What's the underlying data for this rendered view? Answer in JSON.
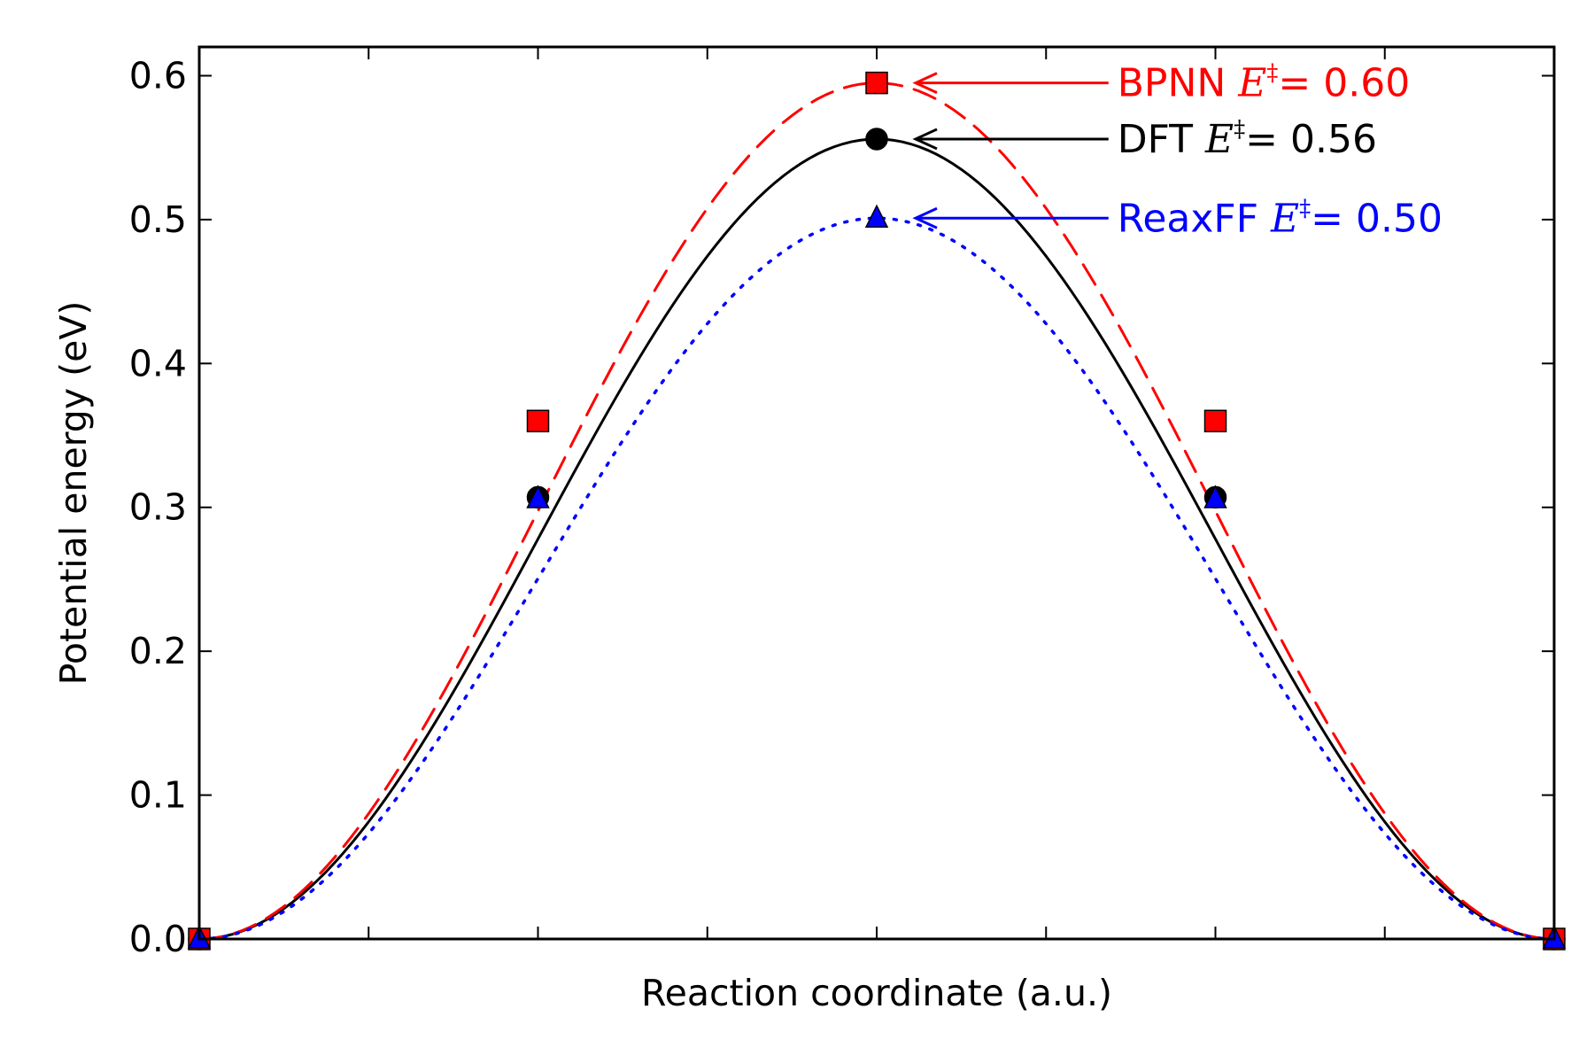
{
  "chart_data": {
    "type": "line",
    "title": "",
    "xlabel": "Reaction coordinate (a.u.)",
    "ylabel": "Potential energy (eV)",
    "xlim": [
      0,
      4
    ],
    "ylim": [
      0,
      0.62
    ],
    "x_ticks": [
      0,
      0.5,
      1,
      1.5,
      2,
      2.5,
      3,
      3.5,
      4
    ],
    "x_tick_labels_shown": false,
    "y_ticks": [
      0.0,
      0.1,
      0.2,
      0.3,
      0.4,
      0.5,
      0.6
    ],
    "y_tick_labels": [
      "0.0",
      "0.1",
      "0.2",
      "0.3",
      "0.4",
      "0.5",
      "0.6"
    ],
    "grid": false,
    "legend": "none",
    "series": [
      {
        "key": "dft",
        "color": "#000000",
        "line_style": "solid",
        "marker": "circle",
        "points": {
          "x": [
            0,
            1,
            2,
            3,
            4
          ],
          "y": [
            0.0,
            0.307,
            0.556,
            0.307,
            0.0
          ]
        }
      },
      {
        "key": "bpnn",
        "color": "#ff0000",
        "line_style": "dashed",
        "marker": "square",
        "points": {
          "x": [
            0,
            1,
            2,
            3,
            4
          ],
          "y": [
            0.0,
            0.36,
            0.595,
            0.36,
            0.0
          ]
        }
      },
      {
        "key": "reaxff",
        "color": "#0000ff",
        "line_style": "dotted",
        "marker": "triangle",
        "points": {
          "x": [
            0,
            1,
            2,
            3,
            4
          ],
          "y": [
            0.0,
            0.306,
            0.501,
            0.306,
            0.0
          ]
        }
      }
    ],
    "annotations": [
      {
        "key": "bpnn",
        "name": "BPNN",
        "symbol": "E",
        "superscript": "‡",
        "value_text": "= 0.60",
        "color": "#ff0000",
        "points_to": {
          "x": 2,
          "y": 0.595
        },
        "text_at": {
          "x": 2.7,
          "y": 0.595
        }
      },
      {
        "key": "dft",
        "name": "DFT",
        "symbol": "E",
        "superscript": "‡",
        "value_text": "= 0.56",
        "color": "#000000",
        "points_to": {
          "x": 2,
          "y": 0.556
        },
        "text_at": {
          "x": 2.7,
          "y": 0.556
        }
      },
      {
        "key": "reaxff",
        "name": "ReaxFF",
        "symbol": "E",
        "superscript": "‡",
        "value_text": "= 0.50",
        "color": "#0000ff",
        "points_to": {
          "x": 2,
          "y": 0.501
        },
        "text_at": {
          "x": 2.7,
          "y": 0.501
        }
      }
    ]
  }
}
